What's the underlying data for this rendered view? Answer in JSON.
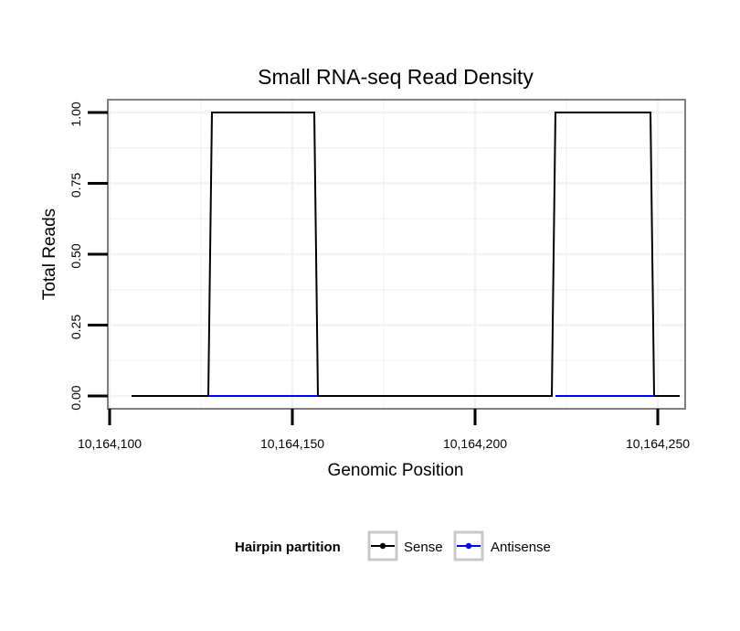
{
  "chart_data": {
    "type": "line",
    "title": "Small RNA-seq Read Density",
    "xlabel": "Genomic Position",
    "ylabel": "Total Reads",
    "xlim": [
      10164099.5,
      10164257.5
    ],
    "ylim": [
      -0.045,
      1.045
    ],
    "x_ticks": [
      10164100,
      10164150,
      10164200,
      10164250
    ],
    "x_tick_labels": [
      "10,164,100",
      "10,164,150",
      "10,164,200",
      "10,164,250"
    ],
    "y_ticks": [
      0,
      0.25,
      0.5,
      0.75,
      1.0
    ],
    "y_tick_labels": [
      "0.00",
      "0.25",
      "0.50",
      "0.75",
      "1.00"
    ],
    "grid": true,
    "legend": {
      "title": "Hairpin partition",
      "position": "bottom",
      "entries": [
        {
          "label": "Sense",
          "color": "#000000"
        },
        {
          "label": "Antisense",
          "color": "#0000ff"
        }
      ]
    },
    "series": [
      {
        "name": "Sense",
        "color": "#000000",
        "x": [
          10164106,
          10164127,
          10164128,
          10164156,
          10164157,
          10164221,
          10164222,
          10164248,
          10164249,
          10164256
        ],
        "y": [
          0,
          0,
          1,
          1,
          0,
          0,
          1,
          1,
          0,
          0
        ]
      },
      {
        "name": "Antisense",
        "color": "#0000ff",
        "x": [
          10164127,
          10164157
        ],
        "y": [
          0,
          0
        ]
      },
      {
        "name": "Antisense",
        "color": "#0000ff",
        "x": [
          10164222,
          10164249
        ],
        "y": [
          0,
          0
        ]
      }
    ]
  }
}
